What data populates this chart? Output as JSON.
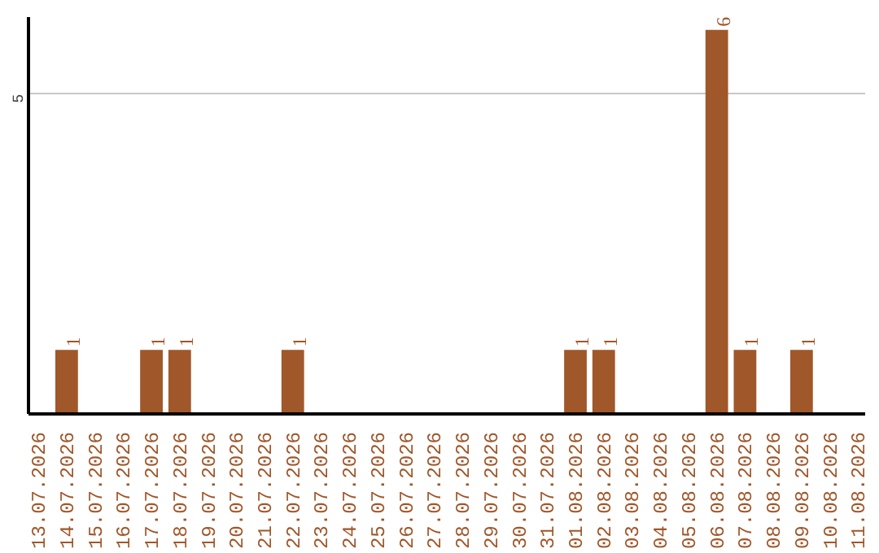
{
  "chart_data": {
    "type": "bar",
    "categories": [
      "13.07.2026",
      "14.07.2026",
      "15.07.2026",
      "16.07.2026",
      "17.07.2026",
      "18.07.2026",
      "19.07.2026",
      "20.07.2026",
      "21.07.2026",
      "22.07.2026",
      "23.07.2026",
      "24.07.2026",
      "25.07.2026",
      "26.07.2026",
      "27.07.2026",
      "28.07.2026",
      "29.07.2026",
      "30.07.2026",
      "31.07.2026",
      "01.08.2026",
      "02.08.2026",
      "03.08.2026",
      "04.08.2026",
      "05.08.2026",
      "06.08.2026",
      "07.08.2026",
      "08.08.2026",
      "09.08.2026",
      "10.08.2026",
      "11.08.2026"
    ],
    "values": [
      0,
      1,
      0,
      0,
      1,
      1,
      0,
      0,
      0,
      1,
      0,
      0,
      0,
      0,
      0,
      0,
      0,
      0,
      0,
      1,
      1,
      0,
      0,
      0,
      6,
      1,
      0,
      1,
      0,
      0
    ],
    "value_labels": [
      null,
      "1",
      null,
      null,
      "1",
      "1",
      null,
      null,
      null,
      "1",
      null,
      null,
      null,
      null,
      null,
      null,
      null,
      null,
      null,
      "1",
      "1",
      null,
      null,
      null,
      "6",
      "1",
      null,
      "1",
      null,
      null
    ],
    "color": "#a0572a",
    "ylim": [
      0,
      6.2
    ],
    "yticks": [
      5
    ],
    "grid": "y"
  }
}
